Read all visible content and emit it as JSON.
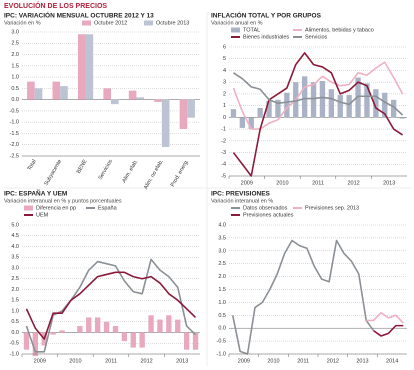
{
  "page_title": "EVOLUCIÓN DE LOS PRECIOS",
  "chart_data": [
    {
      "type": "bar",
      "title": "IPC: VARIACIÓN MENSUAL OCTUBRE 2012 Y 13",
      "subtitle": "Variación en %",
      "categories": [
        "Total",
        "Subyacente",
        "BENE",
        "Servicios",
        "Alim. elab.",
        "Alim. no elab.",
        "Prod. energ."
      ],
      "series": [
        {
          "name": "Octubre 2012",
          "color": "#e8a8bd",
          "values": [
            0.8,
            0.8,
            2.9,
            0.5,
            0.4,
            -0.1,
            -1.3
          ]
        },
        {
          "name": "Octubre 2013",
          "color": "#bcc3d3",
          "values": [
            0.5,
            0.6,
            2.9,
            -0.2,
            0.1,
            -2.1,
            -0.8
          ]
        }
      ],
      "ylim": [
        -2.5,
        3
      ],
      "yticks": [
        {
          "value": 3,
          "label": "3.0"
        },
        2.5,
        {
          "value": 2,
          "label": "2.0"
        },
        1.5,
        {
          "value": 1,
          "label": "1.0"
        },
        0.5,
        {
          "value": 0,
          "label": "0.0"
        },
        -0.5,
        {
          "value": -1,
          "label": "-1.0"
        },
        -1.5,
        {
          "value": -2,
          "label": "-2.0"
        },
        -2.5
      ],
      "grid": true
    },
    {
      "type": "line",
      "title": "INFLACIÓN TOTAL Y POR GRUPOS",
      "subtitle": "Variación anual en %",
      "categories": [
        null,
        "2009",
        null,
        null,
        null,
        "2010",
        null,
        null,
        null,
        "2011",
        null,
        null,
        null,
        "2012",
        null,
        null,
        null,
        "2013",
        null,
        null
      ],
      "series": [
        {
          "name": "TOTAL",
          "type": "bar",
          "color": "#aab3c5",
          "values": [
            0.7,
            -0.9,
            -1.0,
            0.8,
            1.4,
            1.5,
            2.1,
            3.0,
            3.5,
            3.0,
            3.1,
            2.4,
            1.9,
            1.9,
            3.4,
            2.9,
            2.4,
            2.1,
            1.5,
            -0.1
          ]
        },
        {
          "name": "Alimentos, bebidas y tabaco",
          "color": "#efb0c4",
          "values": [
            2.5,
            0.5,
            -1.0,
            -1.0,
            -0.5,
            -0.2,
            0.8,
            1.5,
            2.6,
            2.8,
            3.5,
            3.0,
            2.7,
            2.8,
            3.8,
            3.6,
            4.2,
            4.7,
            3.4,
            2.0
          ]
        },
        {
          "name": "Bienes industriales",
          "color": "#8b1a3a",
          "values": [
            -3.0,
            -4.0,
            -5.0,
            -1.0,
            1.5,
            2.0,
            2.5,
            4.5,
            5.5,
            4.5,
            4.3,
            3.8,
            2.0,
            2.3,
            3.0,
            2.7,
            0.8,
            0.3,
            -1.0,
            -1.5
          ]
        },
        {
          "name": "Servicios",
          "color": "#8a9096",
          "values": [
            3.8,
            3.3,
            2.6,
            2.4,
            1.5,
            1.2,
            1.3,
            1.4,
            1.6,
            1.6,
            1.7,
            1.6,
            1.3,
            1.1,
            1.8,
            1.8,
            1.8,
            1.3,
            0.9,
            0.2
          ]
        }
      ],
      "ylim": [
        -5,
        6
      ],
      "yticks": [
        6,
        5,
        4,
        3,
        2,
        1,
        0,
        -1,
        -2,
        -3,
        -4,
        -5
      ],
      "grid": true
    },
    {
      "type": "line",
      "title": "IPC: ESPAÑA Y UEM",
      "subtitle": "Variación interanual en % y puntos porcentuales",
      "categories": [
        null,
        "2009",
        null,
        null,
        null,
        "2010",
        null,
        null,
        null,
        "2011",
        null,
        null,
        null,
        "2012",
        null,
        null,
        null,
        "2013",
        null,
        null
      ],
      "series": [
        {
          "name": "Diferencia en pp",
          "type": "bar",
          "color": "#e8a8bd",
          "values": [
            -0.8,
            -1.1,
            -0.6,
            -0.1,
            0.1,
            0.0,
            0.3,
            0.7,
            0.7,
            0.5,
            0.3,
            -0.4,
            -0.7,
            -0.7,
            0.8,
            0.6,
            0.8,
            0.6,
            -0.8,
            -0.8
          ]
        },
        {
          "name": "España",
          "color": "#8a9096",
          "values": [
            0.3,
            -0.9,
            -0.9,
            0.8,
            1.0,
            1.5,
            2.1,
            2.9,
            3.3,
            3.2,
            3.1,
            2.4,
            1.9,
            1.8,
            3.4,
            2.9,
            2.6,
            2.1,
            0.3,
            -0.1
          ]
        },
        {
          "name": "UEM",
          "color": "#8b1a3a",
          "values": [
            1.1,
            0.2,
            -0.3,
            0.9,
            0.9,
            1.5,
            1.8,
            2.2,
            2.6,
            2.7,
            2.8,
            2.8,
            2.6,
            2.5,
            2.6,
            2.3,
            1.8,
            1.5,
            1.1,
            0.7
          ]
        }
      ],
      "ylim": [
        -1,
        5
      ],
      "yticks": [
        {
          "value": 5,
          "label": "5.0"
        },
        4.5,
        {
          "value": 4,
          "label": "4.0"
        },
        3.5,
        {
          "value": 3,
          "label": "3.0"
        },
        2.5,
        {
          "value": 2,
          "label": "2.0"
        },
        1.5,
        {
          "value": 1,
          "label": "1.0"
        },
        0.5,
        {
          "value": 0,
          "label": "0.0"
        },
        -0.5,
        {
          "value": -1,
          "label": "-1.0"
        }
      ],
      "grid": true
    },
    {
      "type": "line",
      "title": "IPC: PREVISIONES",
      "subtitle": "Variación interanual en %",
      "categories": [
        null,
        "2009",
        null,
        null,
        null,
        "2010",
        null,
        null,
        null,
        "2011",
        null,
        null,
        null,
        "2012",
        null,
        null,
        null,
        "2013",
        null,
        null,
        null,
        "2014",
        null,
        null
      ],
      "series": [
        {
          "name": "Datos observados",
          "color": "#8a9096",
          "values": [
            0.5,
            -0.9,
            -1.0,
            0.8,
            1.0,
            1.5,
            2.1,
            2.9,
            3.4,
            3.2,
            3.1,
            2.4,
            1.9,
            1.8,
            3.4,
            2.9,
            2.6,
            2.1,
            0.3,
            -0.1,
            null,
            null,
            null,
            null
          ]
        },
        {
          "name": "Previsiones sep. 2013",
          "color": "#efb0c4",
          "values": [
            null,
            null,
            null,
            null,
            null,
            null,
            null,
            null,
            null,
            null,
            null,
            null,
            null,
            null,
            null,
            null,
            null,
            null,
            0.3,
            0.3,
            0.6,
            0.4,
            0.5,
            0.2
          ]
        },
        {
          "name": "Previsiones actuales",
          "color": "#8b1a3a",
          "values": [
            null,
            null,
            null,
            null,
            null,
            null,
            null,
            null,
            null,
            null,
            null,
            null,
            null,
            null,
            null,
            null,
            null,
            null,
            null,
            -0.1,
            -0.3,
            -0.2,
            0.1,
            0.1
          ]
        }
      ],
      "ylim": [
        -1,
        4
      ],
      "yticks": [
        {
          "value": 4,
          "label": "4.0"
        },
        3.5,
        {
          "value": 3,
          "label": "3.0"
        },
        2.5,
        {
          "value": 2,
          "label": "2.0"
        },
        1.5,
        {
          "value": 1,
          "label": "1.0"
        },
        0.5,
        {
          "value": 0,
          "label": "0.0"
        },
        -0.5,
        {
          "value": -1,
          "label": "-1.0"
        }
      ],
      "grid": true
    }
  ]
}
